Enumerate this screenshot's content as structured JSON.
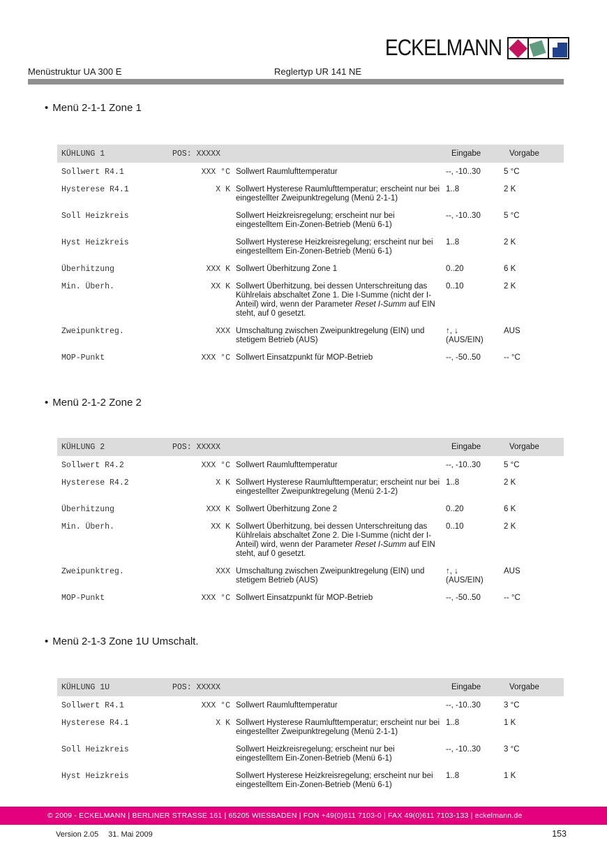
{
  "header": {
    "left": "Menüstruktur UA 300 E",
    "right": "Reglertyp UR 141 NE"
  },
  "logo": {
    "text": "ECKELMANN",
    "colors": {
      "red": "#c4125f",
      "green": "#5f9c80",
      "blue": "#20418c"
    }
  },
  "colors": {
    "brand_magenta": "#e3007d",
    "rule_gray": "#8f8f8f",
    "table_header_bg": "#dcdcdc"
  },
  "sections": [
    {
      "title": "Menü 2-1-1 Zone 1",
      "table": {
        "head": {
          "name": "KÜHLUNG 1",
          "pos": "POS: XXXXX",
          "eingabe": "Eingabe",
          "vorgabe": "Vorgabe"
        },
        "rows": [
          {
            "param": "Sollwert R4.1",
            "value": "XXX °C",
            "desc": "Sollwert Raumlufttemperatur",
            "eingabe": "--, -10..30",
            "vorgabe": "5 °C"
          },
          {
            "param": "Hysterese R4.1",
            "value": "X K",
            "desc": "Sollwert Hysterese Raumlufttemperatur; erscheint nur bei eingestellter Zweipunktregelung (Menü 2-1-1)",
            "eingabe": "1..8",
            "vorgabe": "2 K"
          },
          {
            "param": "Soll Heizkreis",
            "value": "",
            "desc": "Sollwert Heizkreisregelung; erscheint nur bei eingestelltem Ein-Zonen-Betrieb (Menü 6-1)",
            "eingabe": "--, -10..30",
            "vorgabe": "5 °C"
          },
          {
            "param": "Hyst Heizkreis",
            "value": "",
            "desc": "Sollwert Hysterese Heizkreisregelung; erscheint nur bei eingestelltem Ein-Zonen-Betrieb (Menü 6-1)",
            "eingabe": "1..8",
            "vorgabe": "2 K"
          },
          {
            "param": "Überhitzung",
            "value": "XXX K",
            "desc": "Sollwert Überhitzung Zone 1",
            "eingabe": "0..20",
            "vorgabe": "6 K"
          },
          {
            "param": "Min. Überh.",
            "value": "XX K",
            "desc": "Sollwert Überhitzung, bei dessen Unterschreitung das Kühlrelais abschaltet Zone 1. Die I-Summe (nicht der I-Anteil) wird, wenn der Parameter ",
            "italic": "Reset I-Summ",
            "desc_end": " auf EIN steht, auf 0 gesetzt.",
            "eingabe": "0..10",
            "vorgabe": "2 K"
          },
          {
            "param": "Zweipunktreg.",
            "value": "XXX",
            "desc": "Umschaltung zwischen Zweipunktregelung (EIN) und stetigem Betrieb (AUS)",
            "eingabe": "↑, ↓\n(AUS/EIN)",
            "vorgabe": "AUS"
          },
          {
            "param": "MOP-Punkt",
            "value": "XXX °C",
            "desc": "Sollwert Einsatzpunkt für MOP-Betrieb",
            "eingabe": "--, -50..50",
            "vorgabe": "-- °C"
          }
        ]
      }
    },
    {
      "title": "Menü 2-1-2 Zone 2",
      "table": {
        "head": {
          "name": "KÜHLUNG 2",
          "pos": "POS: XXXXX",
          "eingabe": "Eingabe",
          "vorgabe": "Vorgabe"
        },
        "rows": [
          {
            "param": "Sollwert R4.2",
            "value": "XXX °C",
            "desc": "Sollwert Raumlufttemperatur",
            "eingabe": "--, -10..30",
            "vorgabe": "5 °C"
          },
          {
            "param": "Hysterese R4.2",
            "value": "X K",
            "desc": "Sollwert Hysterese Raumlufttemperatur; erscheint nur bei eingestellter Zweipunktregelung (Menü 2-1-2)",
            "eingabe": "1..8",
            "vorgabe": "2 K"
          },
          {
            "param": "Überhitzung",
            "value": "XXX K",
            "desc": "Sollwert Überhitzung Zone 2",
            "eingabe": "0..20",
            "vorgabe": "6 K"
          },
          {
            "param": "Min. Überh.",
            "value": "XX K",
            "desc": "Sollwert Überhitzung, bei dessen Unterschreitung das Kühlrelais abschaltet Zone 2. Die I-Summe (nicht der I-Anteil) wird, wenn der Parameter ",
            "italic": "Reset I-Summ",
            "desc_end": " auf EIN steht, auf 0 gesetzt.",
            "eingabe": "0..10",
            "vorgabe": "2 K"
          },
          {
            "param": "Zweipunktreg.",
            "value": "XXX",
            "desc": "Umschaltung zwischen Zweipunktregelung (EIN) und stetigem Betrieb (AUS)",
            "eingabe": "↑, ↓\n(AUS/EIN)",
            "vorgabe": "AUS"
          },
          {
            "param": "MOP-Punkt",
            "value": "XXX °C",
            "desc": "Sollwert Einsatzpunkt für MOP-Betrieb",
            "eingabe": "--, -50..50",
            "vorgabe": "-- °C"
          }
        ]
      }
    },
    {
      "title": "Menü 2-1-3 Zone 1U Umschalt.",
      "table": {
        "head": {
          "name": "KÜHLUNG 1U",
          "pos": "POS: XXXXX",
          "eingabe": "Eingabe",
          "vorgabe": "Vorgabe"
        },
        "rows": [
          {
            "param": "Sollwert R4.1",
            "value": "XXX °C",
            "desc": "Sollwert Raumlufttemperatur",
            "eingabe": "--, -10..30",
            "vorgabe": "3 °C"
          },
          {
            "param": "Hysterese R4.1",
            "value": "X K",
            "desc": "Sollwert Hysterese Raumlufttemperatur; erscheint nur bei eingestellter Zweipunktregelung (Menü 2-1-1)",
            "eingabe": "1..8",
            "vorgabe": "1 K"
          },
          {
            "param": "Soll Heizkreis",
            "value": "",
            "desc": "Sollwert Heizkreisregelung; erscheint nur bei eingestelltem Ein-Zonen-Betrieb (Menü 6-1)",
            "eingabe": "--, -10..30",
            "vorgabe": "3 °C"
          },
          {
            "param": "Hyst Heizkreis",
            "value": "",
            "desc": "Sollwert Hysterese Heizkreisregelung; erscheint nur bei eingestelltem Ein-Zonen-Betrieb (Menü 6-1)",
            "eingabe": "1..8",
            "vorgabe": "1 K"
          }
        ]
      }
    }
  ],
  "footer": {
    "copyright": "© 2009 - ECKELMANN | BERLINER STRASSE 161 | 65205 WIESBADEN | FON +49(0)611 7103-0 | FAX 49(0)611 7103-133 | eckelmann.de",
    "version": "Version 2.05",
    "date": "31. Mai 2009",
    "page_number": "153"
  }
}
